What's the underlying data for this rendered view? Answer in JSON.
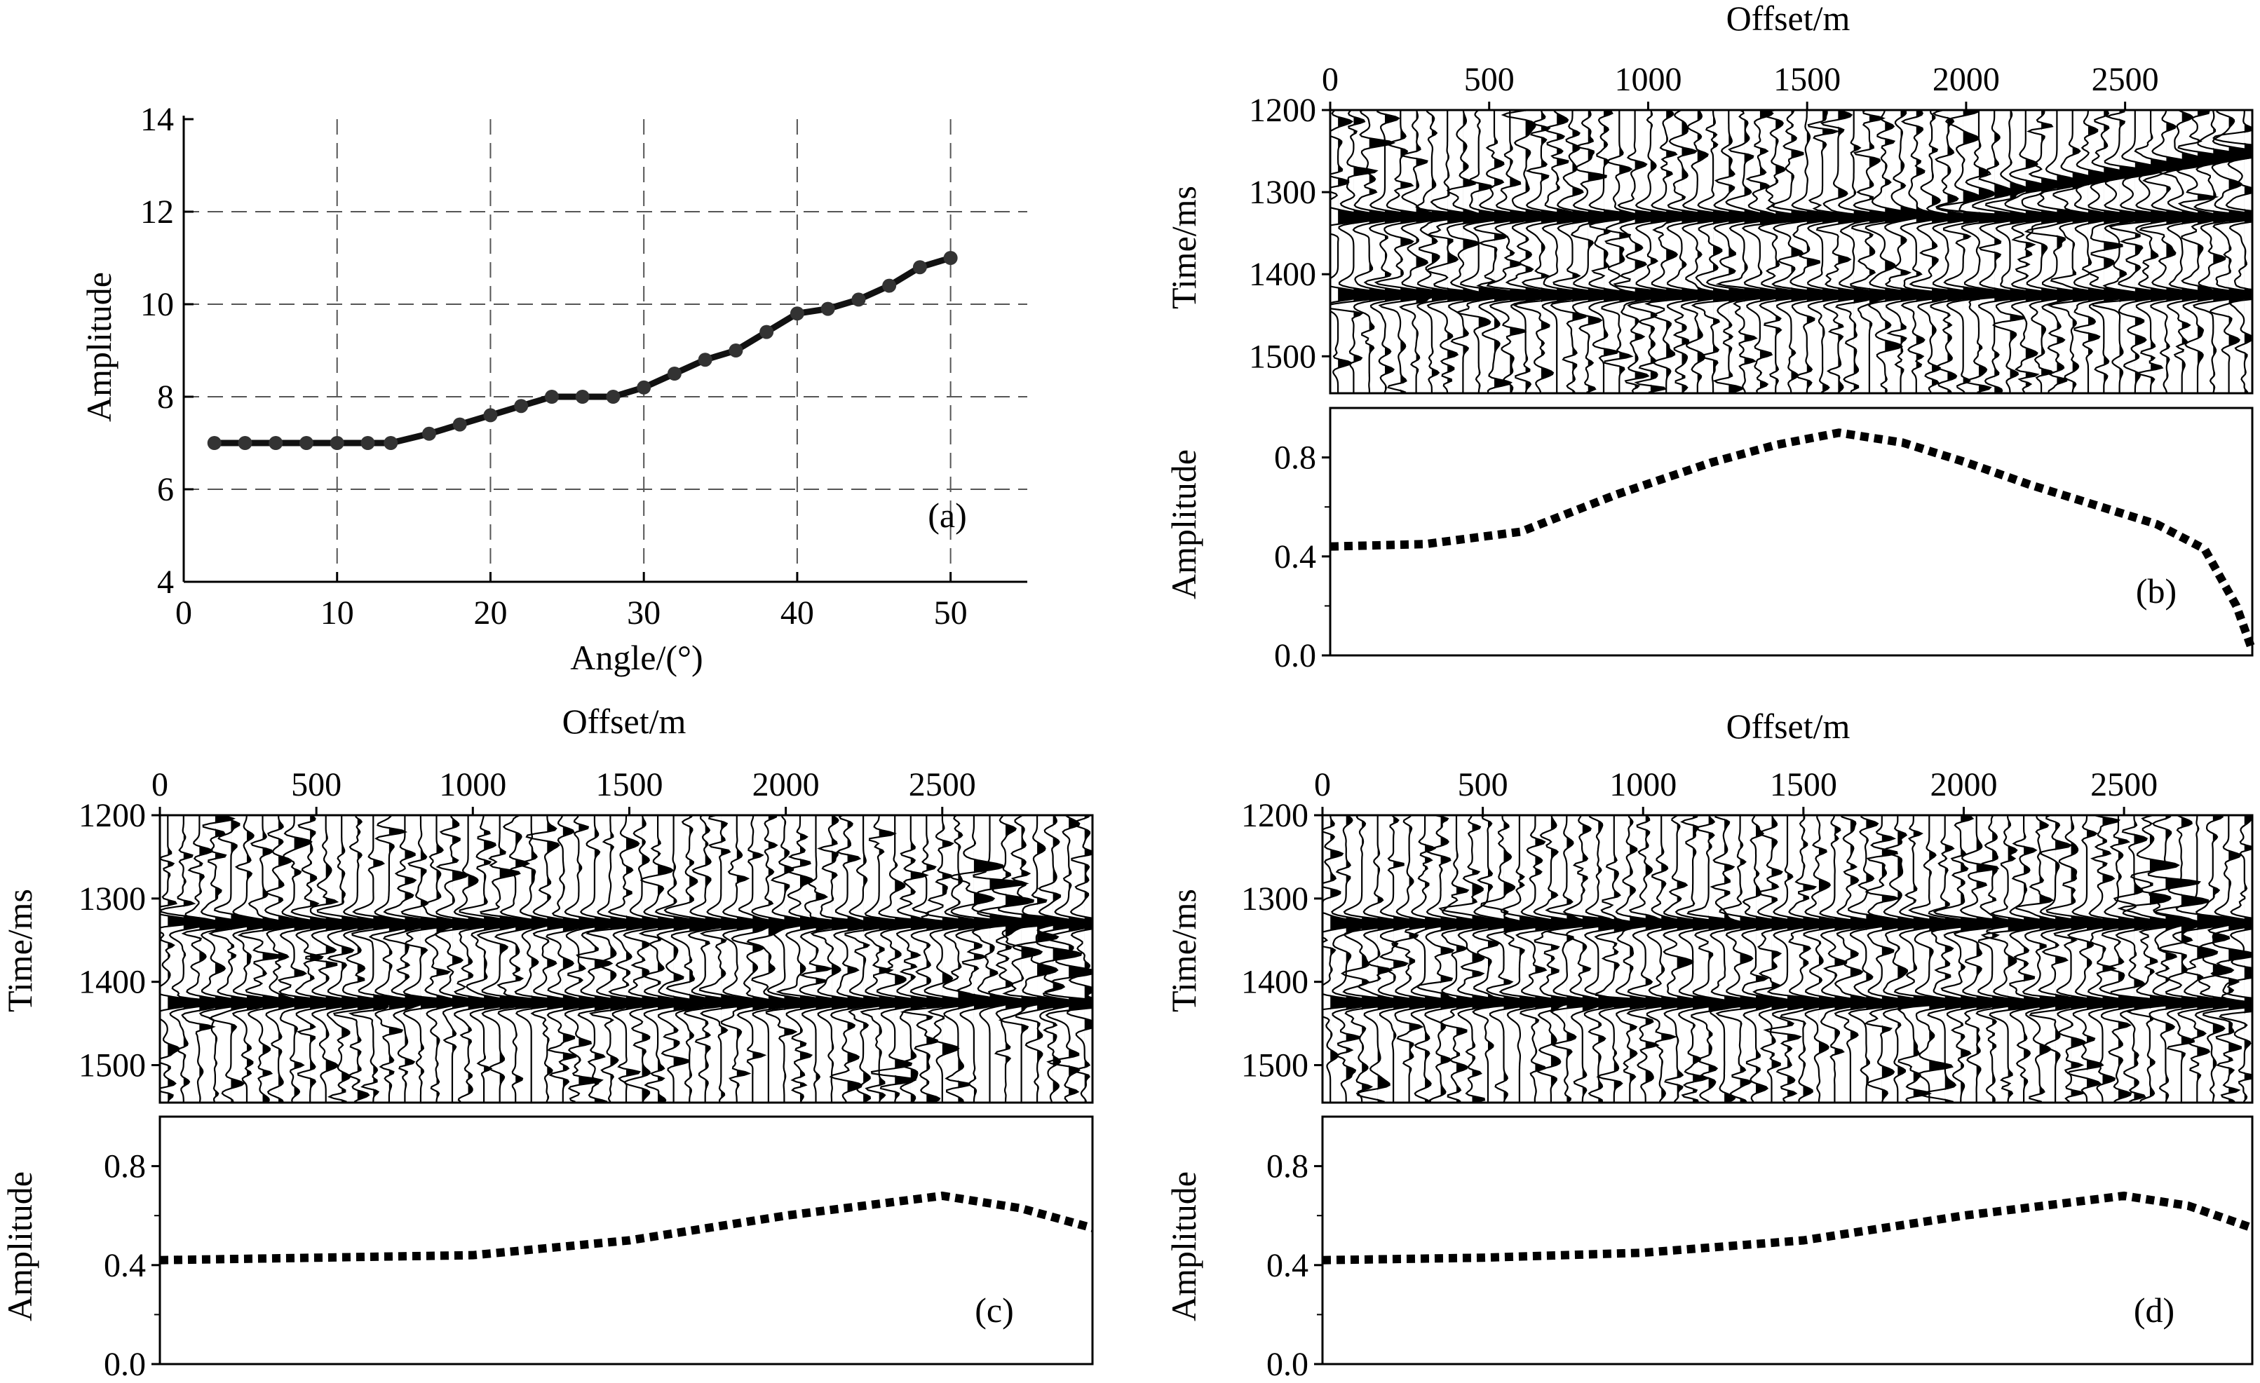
{
  "chart_data": [
    {
      "id": "a",
      "type": "line",
      "panel_label": "(a)",
      "xlabel": "Angle/(°)",
      "ylabel": "Amplitude",
      "xlim": [
        0,
        55
      ],
      "ylim": [
        4,
        14
      ],
      "xticks": [
        0,
        10,
        20,
        30,
        40,
        50
      ],
      "yticks": [
        4,
        6,
        8,
        10,
        12,
        14
      ],
      "grid": true,
      "x": [
        2,
        4,
        6,
        8,
        10,
        12,
        13.5,
        16,
        18,
        20,
        22,
        24,
        26,
        28,
        30,
        32,
        34,
        36,
        38,
        40,
        42,
        44,
        46,
        48,
        50
      ],
      "y": [
        7.0,
        7.0,
        7.0,
        7.0,
        7.0,
        7.0,
        7.0,
        7.2,
        7.4,
        7.6,
        7.8,
        8.0,
        8.0,
        8.0,
        8.2,
        8.5,
        8.8,
        9.0,
        9.4,
        9.8,
        9.9,
        10.1,
        10.4,
        10.8,
        11.0
      ]
    },
    {
      "id": "b",
      "type": "seismic-gather",
      "xlabel": "Offset/m",
      "ylabel": "Time/ms",
      "xlim": [
        0,
        2900
      ],
      "ylim": [
        1200,
        1545
      ],
      "xticks": [
        0,
        500,
        1000,
        1500,
        2000,
        2500
      ],
      "yticks": [
        1200,
        1300,
        1400,
        1500
      ],
      "events": [
        {
          "time0": 1330,
          "amp_scale": "b"
        },
        {
          "time0": 1425,
          "amp_scale": "b"
        }
      ],
      "late_event": {
        "offset_start": 1700,
        "offset_end": 2880,
        "time_start": 1325,
        "time_end": 1250
      }
    },
    {
      "id": "b-curve",
      "type": "line",
      "style": "dotted",
      "panel_label": "(b)",
      "ylabel": "Amplitude",
      "xlim": [
        0,
        2900
      ],
      "ylim": [
        0.0,
        1.0
      ],
      "yticks": [
        0.0,
        0.4,
        0.8
      ],
      "x": [
        0,
        300,
        600,
        900,
        1200,
        1400,
        1600,
        1800,
        2000,
        2200,
        2400,
        2600,
        2750,
        2850,
        2900
      ],
      "y": [
        0.44,
        0.45,
        0.5,
        0.65,
        0.78,
        0.85,
        0.9,
        0.86,
        0.78,
        0.69,
        0.61,
        0.53,
        0.43,
        0.2,
        0.02
      ]
    },
    {
      "id": "c",
      "type": "seismic-gather",
      "xlabel": "Offset/m",
      "ylabel": "Time/ms",
      "xlim": [
        0,
        2980
      ],
      "ylim": [
        1200,
        1545
      ],
      "xticks": [
        0,
        500,
        1000,
        1500,
        2000,
        2500
      ],
      "yticks": [
        1200,
        1300,
        1400,
        1500
      ],
      "events": [
        {
          "time0": 1330,
          "amp_scale": "c"
        },
        {
          "time0": 1425,
          "amp_scale": "c"
        }
      ],
      "far_disturbance": {
        "offset_start": 2600,
        "offset_end": 2980,
        "time_start": 1260,
        "time_end": 1420
      }
    },
    {
      "id": "c-curve",
      "type": "line",
      "style": "dotted",
      "panel_label": "(c)",
      "ylabel": "Amplitude",
      "xlim": [
        0,
        2980
      ],
      "ylim": [
        0.0,
        1.0
      ],
      "yticks": [
        0.0,
        0.4,
        0.8
      ],
      "x": [
        0,
        500,
        1000,
        1500,
        2000,
        2500,
        2750,
        2980
      ],
      "y": [
        0.42,
        0.43,
        0.44,
        0.5,
        0.6,
        0.68,
        0.63,
        0.55
      ]
    },
    {
      "id": "d",
      "type": "seismic-gather",
      "xlabel": "Offset/m",
      "ylabel": "Time/ms",
      "xlim": [
        0,
        2900
      ],
      "ylim": [
        1200,
        1545
      ],
      "xticks": [
        0,
        500,
        1000,
        1500,
        2000,
        2500
      ],
      "yticks": [
        1200,
        1300,
        1400,
        1500
      ],
      "events": [
        {
          "time0": 1330,
          "amp_scale": "c"
        },
        {
          "time0": 1425,
          "amp_scale": "c"
        }
      ],
      "far_disturbance": {
        "offset_start": 2580,
        "offset_end": 2900,
        "time_start": 1260,
        "time_end": 1400
      }
    },
    {
      "id": "d-curve",
      "type": "line",
      "style": "dotted",
      "panel_label": "(d)",
      "ylabel": "Amplitude",
      "xlim": [
        0,
        2900
      ],
      "ylim": [
        0.0,
        1.0
      ],
      "yticks": [
        0.0,
        0.4,
        0.8
      ],
      "x": [
        0,
        500,
        1000,
        1500,
        2000,
        2500,
        2700,
        2900
      ],
      "y": [
        0.42,
        0.43,
        0.45,
        0.5,
        0.6,
        0.68,
        0.64,
        0.55
      ]
    }
  ]
}
